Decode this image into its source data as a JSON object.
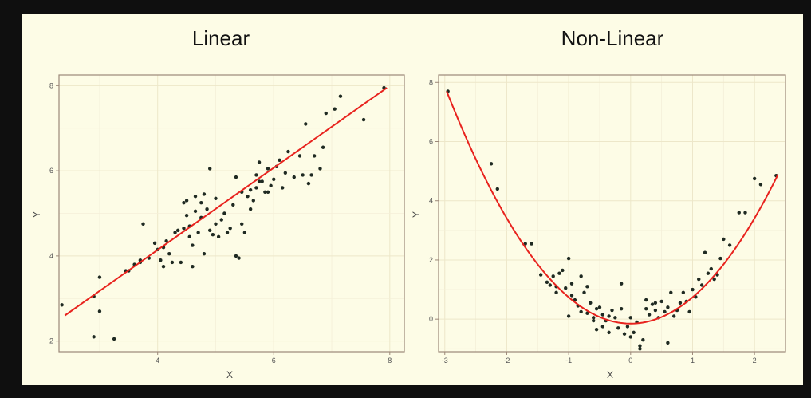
{
  "chart_data": [
    {
      "type": "scatter",
      "title": "Linear",
      "xlabel": "X",
      "ylabel": "Y",
      "xlim": [
        2.3,
        8.25
      ],
      "ylim": [
        1.75,
        8.25
      ],
      "xticks": [
        4,
        6,
        8
      ],
      "yticks": [
        2,
        4,
        6,
        8
      ],
      "grid": true,
      "points": [
        [
          2.35,
          2.85
        ],
        [
          2.9,
          2.1
        ],
        [
          2.9,
          3.05
        ],
        [
          3.0,
          2.7
        ],
        [
          3.0,
          3.5
        ],
        [
          3.25,
          2.05
        ],
        [
          3.45,
          3.65
        ],
        [
          3.5,
          3.65
        ],
        [
          3.6,
          3.8
        ],
        [
          3.7,
          3.85
        ],
        [
          3.7,
          3.9
        ],
        [
          3.75,
          4.75
        ],
        [
          3.85,
          3.95
        ],
        [
          3.95,
          4.3
        ],
        [
          4.0,
          4.15
        ],
        [
          4.05,
          3.9
        ],
        [
          4.1,
          3.75
        ],
        [
          4.1,
          4.2
        ],
        [
          4.15,
          4.35
        ],
        [
          4.2,
          4.05
        ],
        [
          4.25,
          3.85
        ],
        [
          4.3,
          4.55
        ],
        [
          4.35,
          4.6
        ],
        [
          4.4,
          3.85
        ],
        [
          4.45,
          4.65
        ],
        [
          4.5,
          4.95
        ],
        [
          4.5,
          5.3
        ],
        [
          4.55,
          4.45
        ],
        [
          4.55,
          4.7
        ],
        [
          4.6,
          3.75
        ],
        [
          4.6,
          4.25
        ],
        [
          4.65,
          5.05
        ],
        [
          4.7,
          4.55
        ],
        [
          4.75,
          4.9
        ],
        [
          4.75,
          5.25
        ],
        [
          4.8,
          4.05
        ],
        [
          4.8,
          5.45
        ],
        [
          4.85,
          5.1
        ],
        [
          4.9,
          4.6
        ],
        [
          4.9,
          6.05
        ],
        [
          4.95,
          4.5
        ],
        [
          5.0,
          4.75
        ],
        [
          5.0,
          5.35
        ],
        [
          5.05,
          4.45
        ],
        [
          5.1,
          4.85
        ],
        [
          5.15,
          5.0
        ],
        [
          5.2,
          4.55
        ],
        [
          5.25,
          4.65
        ],
        [
          5.3,
          5.2
        ],
        [
          5.35,
          4.0
        ],
        [
          5.4,
          3.95
        ],
        [
          5.45,
          4.75
        ],
        [
          5.45,
          5.5
        ],
        [
          5.5,
          4.55
        ],
        [
          5.55,
          5.4
        ],
        [
          5.6,
          5.1
        ],
        [
          5.65,
          5.3
        ],
        [
          5.7,
          5.6
        ],
        [
          5.7,
          5.9
        ],
        [
          5.75,
          6.2
        ],
        [
          5.8,
          5.75
        ],
        [
          5.85,
          5.5
        ],
        [
          5.9,
          6.05
        ],
        [
          5.95,
          5.65
        ],
        [
          6.0,
          5.8
        ],
        [
          6.05,
          6.1
        ],
        [
          6.1,
          6.25
        ],
        [
          6.15,
          5.6
        ],
        [
          6.2,
          5.95
        ],
        [
          6.25,
          6.45
        ],
        [
          6.35,
          5.85
        ],
        [
          6.45,
          6.35
        ],
        [
          6.5,
          5.9
        ],
        [
          6.55,
          7.1
        ],
        [
          6.6,
          5.7
        ],
        [
          6.65,
          5.9
        ],
        [
          6.7,
          6.35
        ],
        [
          6.8,
          6.05
        ],
        [
          6.85,
          6.55
        ],
        [
          6.9,
          7.35
        ],
        [
          7.05,
          7.45
        ],
        [
          7.15,
          7.75
        ],
        [
          7.55,
          7.2
        ],
        [
          7.9,
          7.95
        ],
        [
          5.6,
          5.55
        ],
        [
          5.75,
          5.75
        ],
        [
          4.45,
          5.25
        ],
        [
          4.65,
          5.4
        ],
        [
          5.35,
          5.85
        ],
        [
          5.9,
          5.5
        ]
      ],
      "fit_line": [
        [
          2.4,
          2.6
        ],
        [
          7.95,
          7.95
        ]
      ]
    },
    {
      "type": "scatter",
      "title": "Non-Linear",
      "xlabel": "X",
      "ylabel": "Y",
      "xlim": [
        -3.1,
        2.5
      ],
      "ylim": [
        -1.1,
        8.25
      ],
      "xticks": [
        -3,
        -2,
        -1,
        0,
        1,
        2
      ],
      "yticks": [
        0,
        2,
        4,
        6,
        8
      ],
      "grid": true,
      "points": [
        [
          -2.95,
          7.7
        ],
        [
          -2.25,
          5.25
        ],
        [
          -2.15,
          4.4
        ],
        [
          -1.7,
          2.55
        ],
        [
          -1.6,
          2.55
        ],
        [
          -1.45,
          1.5
        ],
        [
          -1.35,
          1.25
        ],
        [
          -1.3,
          1.15
        ],
        [
          -1.25,
          1.45
        ],
        [
          -1.2,
          1.1
        ],
        [
          -1.15,
          1.55
        ],
        [
          -1.1,
          1.65
        ],
        [
          -1.05,
          1.05
        ],
        [
          -1.0,
          2.05
        ],
        [
          -1.0,
          0.1
        ],
        [
          -0.95,
          1.2
        ],
        [
          -0.95,
          0.8
        ],
        [
          -0.9,
          0.65
        ],
        [
          -0.85,
          0.45
        ],
        [
          -0.8,
          0.25
        ],
        [
          -0.8,
          1.45
        ],
        [
          -0.75,
          0.9
        ],
        [
          -0.7,
          0.2
        ],
        [
          -0.7,
          1.1
        ],
        [
          -0.65,
          0.55
        ],
        [
          -0.6,
          0.05
        ],
        [
          -0.55,
          0.35
        ],
        [
          -0.55,
          -0.35
        ],
        [
          -0.5,
          0.4
        ],
        [
          -0.45,
          0.15
        ],
        [
          -0.45,
          -0.25
        ],
        [
          -0.4,
          -0.05
        ],
        [
          -0.35,
          -0.45
        ],
        [
          -0.3,
          0.3
        ],
        [
          -0.25,
          0.05
        ],
        [
          -0.2,
          -0.3
        ],
        [
          -0.15,
          0.35
        ],
        [
          -0.15,
          1.2
        ],
        [
          -0.1,
          -0.5
        ],
        [
          -0.05,
          -0.25
        ],
        [
          0.0,
          -0.6
        ],
        [
          0.0,
          0.05
        ],
        [
          0.05,
          -0.45
        ],
        [
          0.1,
          -0.1
        ],
        [
          0.15,
          -0.9
        ],
        [
          0.15,
          -1.0
        ],
        [
          0.2,
          -0.7
        ],
        [
          0.25,
          0.35
        ],
        [
          0.25,
          0.65
        ],
        [
          0.3,
          0.15
        ],
        [
          0.35,
          0.5
        ],
        [
          0.4,
          0.3
        ],
        [
          0.45,
          0.05
        ],
        [
          0.5,
          0.6
        ],
        [
          0.55,
          0.25
        ],
        [
          0.6,
          -0.8
        ],
        [
          0.6,
          0.4
        ],
        [
          0.65,
          0.9
        ],
        [
          0.7,
          0.1
        ],
        [
          0.75,
          0.3
        ],
        [
          0.8,
          0.55
        ],
        [
          0.85,
          0.9
        ],
        [
          0.9,
          0.6
        ],
        [
          0.95,
          0.25
        ],
        [
          1.0,
          1.0
        ],
        [
          1.05,
          0.75
        ],
        [
          1.1,
          1.35
        ],
        [
          1.15,
          1.15
        ],
        [
          1.2,
          2.25
        ],
        [
          1.25,
          1.55
        ],
        [
          1.3,
          1.7
        ],
        [
          1.35,
          1.35
        ],
        [
          1.4,
          1.5
        ],
        [
          1.45,
          2.05
        ],
        [
          1.5,
          2.7
        ],
        [
          1.6,
          2.5
        ],
        [
          1.75,
          3.6
        ],
        [
          1.85,
          3.6
        ],
        [
          2.0,
          4.75
        ],
        [
          2.1,
          4.55
        ],
        [
          2.35,
          4.85
        ],
        [
          -0.6,
          -0.05
        ],
        [
          -0.35,
          0.1
        ],
        [
          0.4,
          0.55
        ],
        [
          -1.2,
          0.9
        ]
      ],
      "fit_curve": {
        "a": 0.89,
        "b": 0.0,
        "c": -0.15,
        "x_from": -2.97,
        "x_to": 2.38
      }
    }
  ]
}
